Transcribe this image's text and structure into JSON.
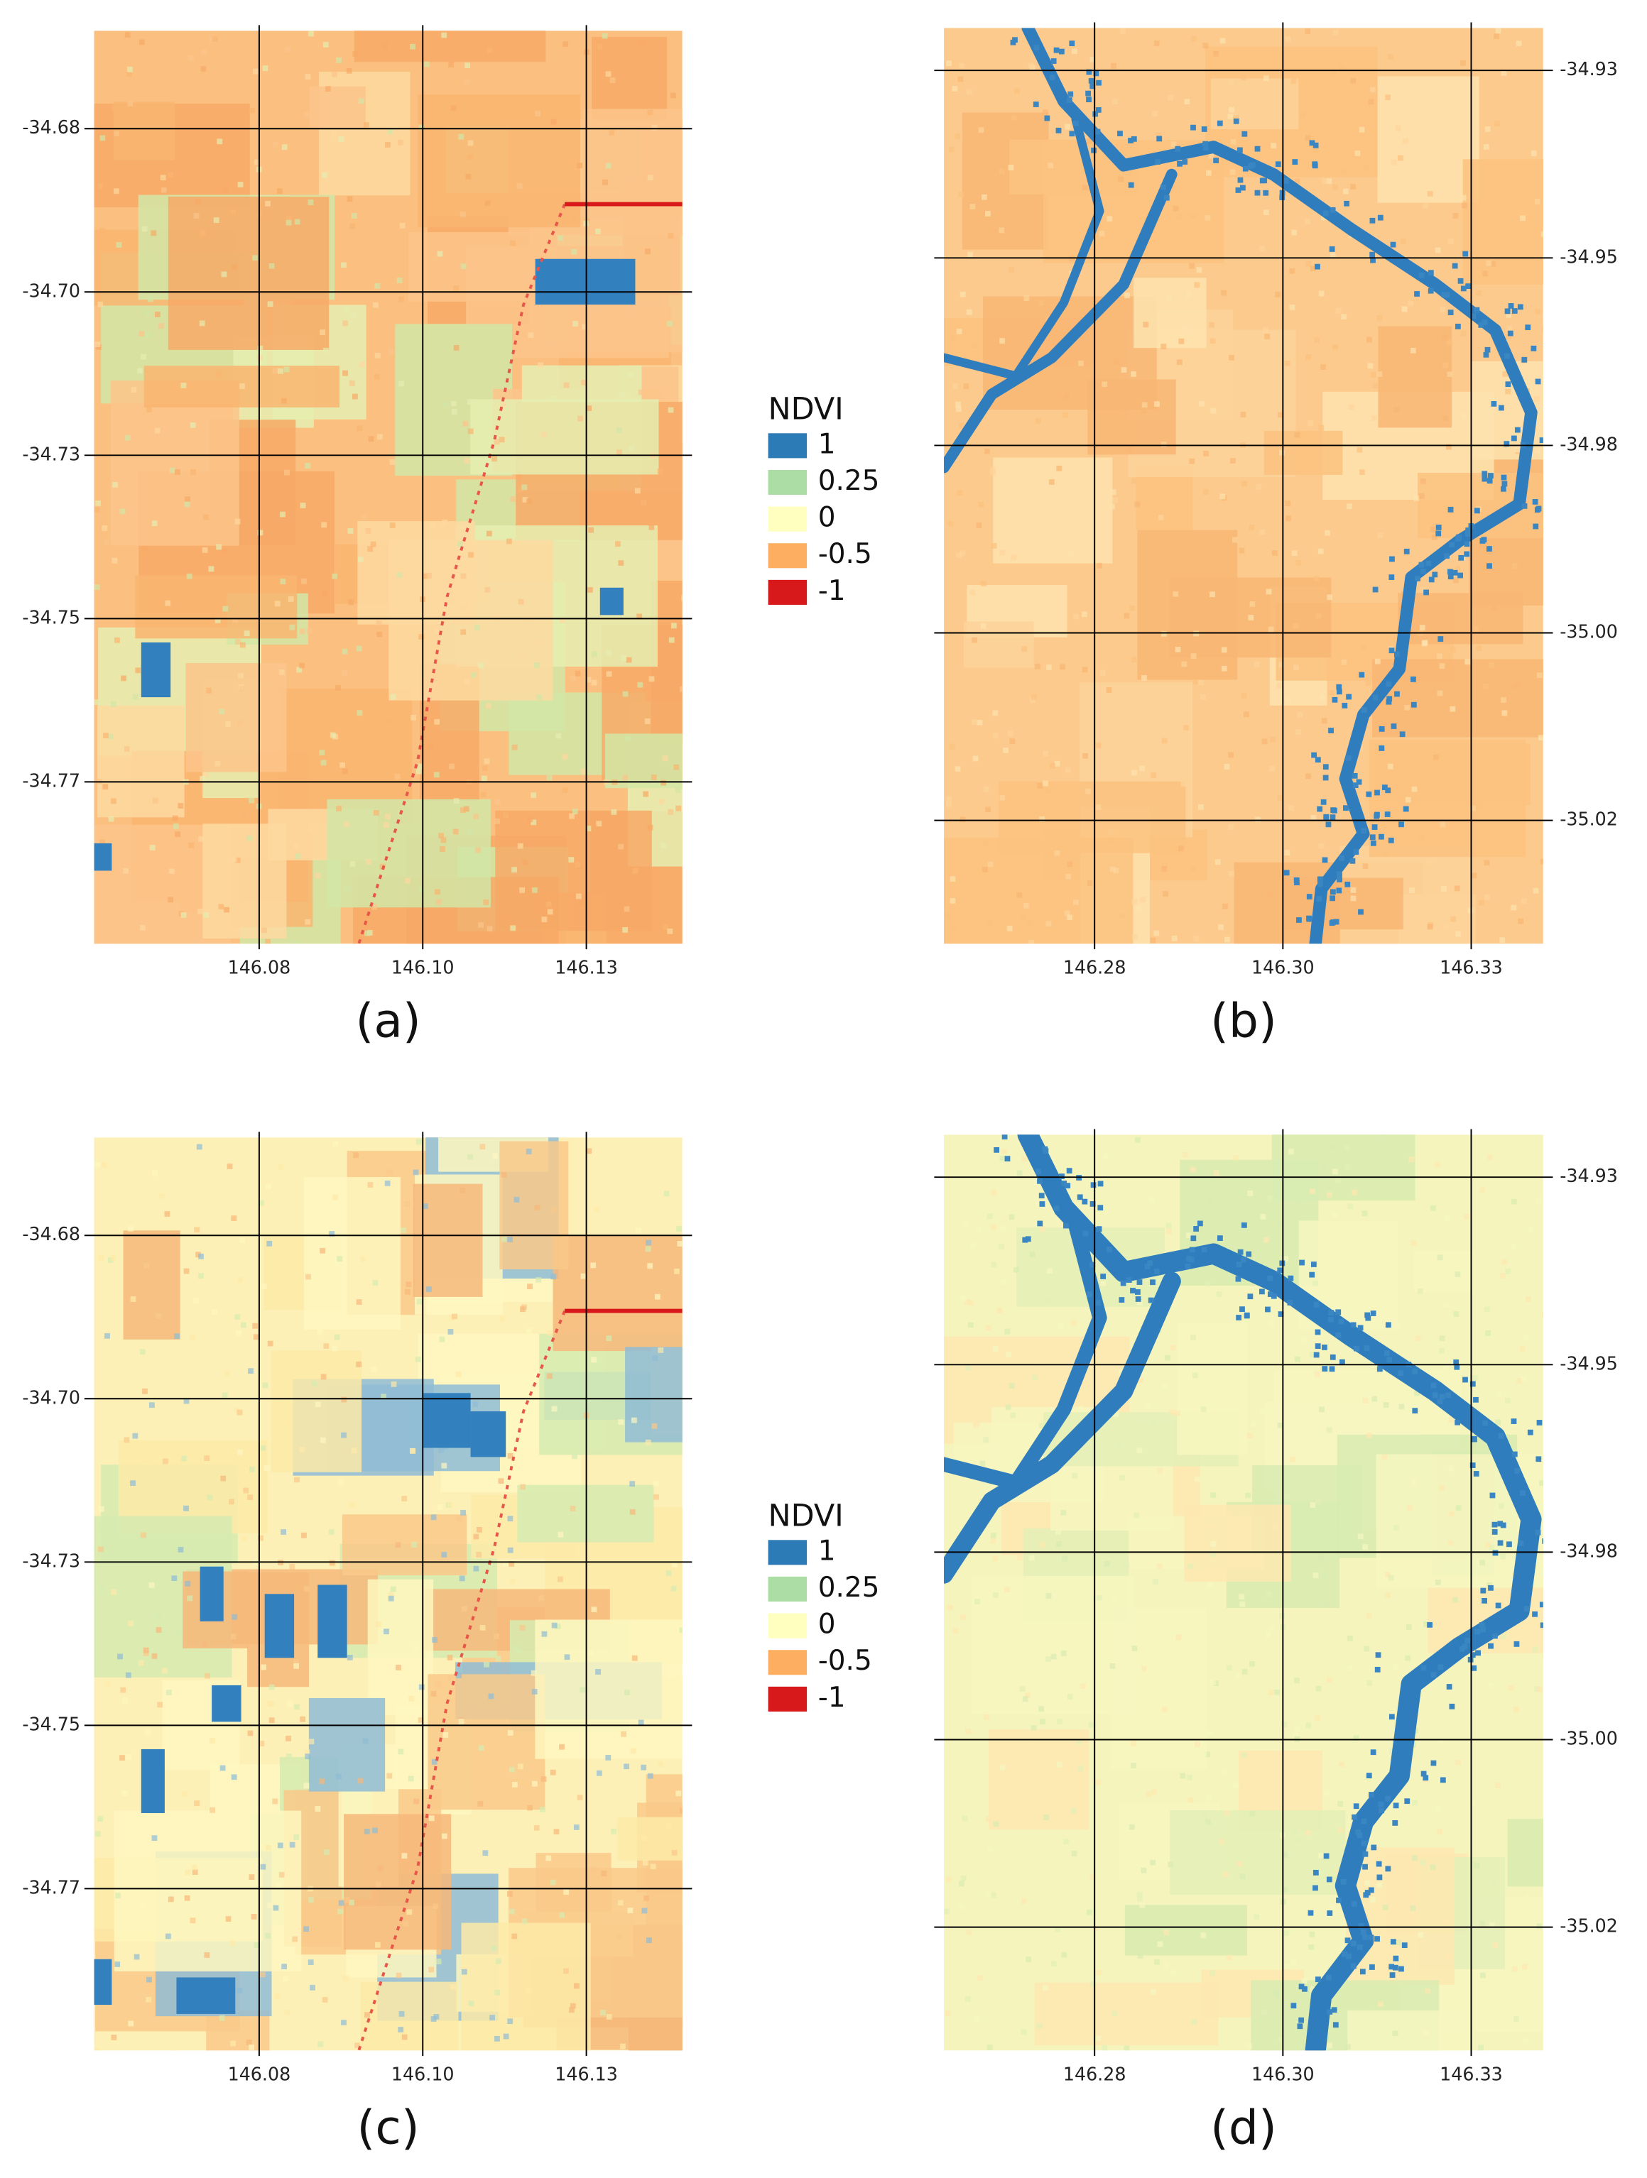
{
  "panels": [
    {
      "label": "(a)",
      "xlim": [
        146.0573,
        146.1382
      ],
      "ylim": [
        -34.7923,
        -34.6665
      ],
      "xticks": [
        146.08,
        {
          "value": 146.1025,
          "label": "146.10"
        },
        {
          "value": 146.125,
          "label": "146.13"
        }
      ],
      "yticks": [
        -34.68,
        {
          "value": -34.7025,
          "label": "-34.70"
        },
        {
          "value": -34.725,
          "label": "-34.73"
        },
        {
          "value": -34.7475,
          "label": "-34.75"
        },
        -34.77
      ]
    },
    {
      "label": "(b)",
      "xlim": [
        146.262,
        146.3336
      ],
      "ylim": [
        -35.0348,
        -34.9249
      ],
      "xticks": [
        146.28,
        {
          "value": 146.3025,
          "label": "146.30"
        },
        {
          "value": 146.325,
          "label": "146.33"
        }
      ],
      "yticks": [
        -34.93,
        {
          "value": -34.9525,
          "label": "-34.95"
        },
        {
          "value": -34.975,
          "label": "-34.98"
        },
        {
          "value": -34.9975,
          "label": "-35.00"
        },
        -35.02
      ]
    },
    {
      "label": "(c)",
      "xlim": [
        146.0573,
        146.1382
      ],
      "ylim": [
        -34.7923,
        -34.6665
      ],
      "xticks": [
        146.08,
        {
          "value": 146.1025,
          "label": "146.10"
        },
        {
          "value": 146.125,
          "label": "146.13"
        }
      ],
      "yticks": [
        -34.68,
        {
          "value": -34.7025,
          "label": "-34.70"
        },
        {
          "value": -34.725,
          "label": "-34.73"
        },
        {
          "value": -34.7475,
          "label": "-34.75"
        },
        -34.77
      ]
    },
    {
      "label": "(d)",
      "xlim": [
        146.262,
        146.3336
      ],
      "ylim": [
        -35.0348,
        -34.9249
      ],
      "xticks": [
        146.28,
        {
          "value": 146.3025,
          "label": "146.30"
        },
        {
          "value": 146.325,
          "label": "146.33"
        }
      ],
      "yticks": [
        -34.93,
        {
          "value": -34.9525,
          "label": "-34.95"
        },
        {
          "value": -34.975,
          "label": "-34.98"
        },
        {
          "value": -34.9975,
          "label": "-35.00"
        },
        -35.02
      ]
    }
  ],
  "legends": [
    {
      "title": "NDVI",
      "entries": [
        {
          "label": "1",
          "color": "#2c7bb6"
        },
        {
          "label": "0.25",
          "color": "#abdda4"
        },
        {
          "label": "0",
          "color": "#ffffbf"
        },
        {
          "label": "-0.5",
          "color": "#fdae61"
        },
        {
          "label": "-1",
          "color": "#d7191c"
        }
      ]
    },
    {
      "title": "NDVI",
      "entries": [
        {
          "label": "1",
          "color": "#2c7bb6"
        },
        {
          "label": "0.25",
          "color": "#abdda4"
        },
        {
          "label": "0",
          "color": "#ffffbf"
        },
        {
          "label": "-0.5",
          "color": "#fdae61"
        },
        {
          "label": "-1",
          "color": "#d7191c"
        }
      ]
    }
  ]
}
